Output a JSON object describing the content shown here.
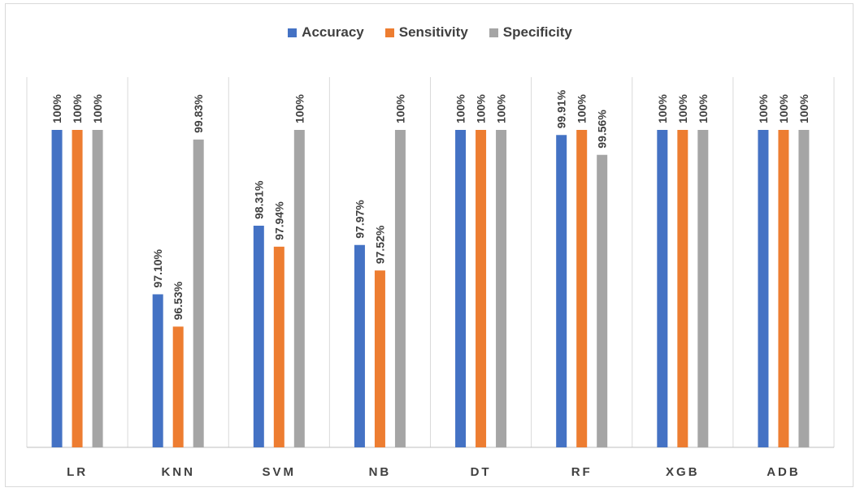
{
  "chart_data": {
    "type": "bar",
    "categories": [
      "LR",
      "KNN",
      "SVM",
      "NB",
      "DT",
      "RF",
      "XGB",
      "ADB"
    ],
    "series": [
      {
        "name": "Accuracy",
        "color": "#4472c4",
        "values": [
          100,
          97.1,
          98.31,
          97.97,
          100,
          99.91,
          100,
          100
        ],
        "labels": [
          "100%",
          "97.10%",
          "98.31%",
          "97.97%",
          "100%",
          "99.91%",
          "100%",
          "100%"
        ]
      },
      {
        "name": "Sensitivity",
        "color": "#ed7d31",
        "values": [
          100,
          96.53,
          97.94,
          97.52,
          100,
          100,
          100,
          100
        ],
        "labels": [
          "100%",
          "96.53%",
          "97.94%",
          "97.52%",
          "100%",
          "100%",
          "100%",
          "100%"
        ]
      },
      {
        "name": "Specificity",
        "color": "#a5a5a5",
        "values": [
          100,
          99.83,
          100,
          100,
          100,
          99.56,
          100,
          100
        ],
        "labels": [
          "100%",
          "99.83%",
          "100%",
          "100%",
          "100%",
          "99.56%",
          "100%",
          "100%"
        ]
      }
    ],
    "ylim": [
      94.4,
      100
    ],
    "legend": "top-center",
    "grid": "vertical-category-separators"
  }
}
